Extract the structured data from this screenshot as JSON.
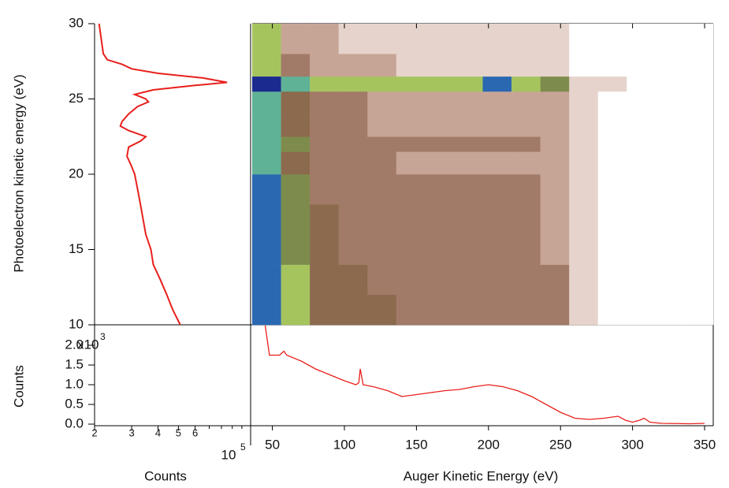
{
  "chart_data": [
    {
      "type": "line",
      "x_label": "Counts",
      "y_label": "Photoelectron kinetic energy (eV)",
      "log_x": true,
      "x_multiplier": "10",
      "x_multiplier_exp": "5",
      "xlim": [
        2,
        11
      ],
      "xticks": [
        2,
        3,
        4,
        5,
        6
      ],
      "xminor_ticks": [
        7,
        8,
        9,
        10
      ],
      "ylim": [
        10,
        30
      ],
      "yticks": [
        10,
        15,
        20,
        25,
        30
      ],
      "series": [
        {
          "color": "#e8201c",
          "y": [
            30,
            29,
            28,
            27.6,
            27.3,
            27,
            26.7,
            26.4,
            26.1,
            25.9,
            25.6,
            25.3,
            25,
            24.8,
            24.5,
            24,
            23.5,
            23.2,
            22.9,
            22.5,
            22.2,
            21.8,
            21.2,
            20.5,
            20,
            19,
            18,
            17,
            16,
            15,
            14,
            13,
            12,
            11,
            10
          ],
          "values": [
            2.1,
            2.15,
            2.2,
            2.3,
            2.7,
            3.0,
            4.0,
            6.5,
            8.5,
            6.0,
            3.8,
            3.1,
            3.5,
            3.6,
            3.2,
            2.9,
            2.7,
            2.65,
            2.9,
            3.5,
            3.3,
            2.9,
            2.85,
            3.0,
            3.1,
            3.2,
            3.3,
            3.4,
            3.5,
            3.7,
            3.8,
            4.1,
            4.4,
            4.7,
            5.1
          ]
        }
      ]
    },
    {
      "type": "heatmap",
      "x_label": "Auger Kinetic Energy (eV)",
      "xlim": [
        36,
        356
      ],
      "xticks": [
        50,
        100,
        150,
        200,
        250,
        300,
        350
      ],
      "ylim": [
        10,
        30
      ],
      "colorscale": [
        "#ffffff",
        "#e6d4cc",
        "#c7a596",
        "#a27a68",
        "#8c6a4e",
        "#7d8c4c",
        "#a6c45e",
        "#5fb296",
        "#2a68b2",
        "#1a2a8e"
      ],
      "x_bins": [
        36,
        56,
        76,
        96,
        116,
        136,
        156,
        176,
        196,
        216,
        236,
        256,
        276,
        296,
        316,
        336,
        356
      ],
      "y_bins": [
        10,
        12,
        14,
        16,
        18,
        20,
        21.5,
        22.5,
        24,
        25.5,
        26.5,
        28,
        30
      ],
      "z": [
        [
          8,
          6,
          4,
          4,
          4,
          3,
          3,
          3,
          3,
          3,
          3,
          1,
          0,
          0,
          0,
          0
        ],
        [
          8,
          6,
          4,
          4,
          3,
          3,
          3,
          3,
          3,
          3,
          3,
          1,
          0,
          0,
          0,
          0
        ],
        [
          8,
          5,
          4,
          3,
          3,
          3,
          3,
          3,
          3,
          3,
          2,
          1,
          0,
          0,
          0,
          0
        ],
        [
          8,
          5,
          4,
          3,
          3,
          3,
          3,
          3,
          3,
          3,
          2,
          1,
          0,
          0,
          0,
          0
        ],
        [
          8,
          5,
          3,
          3,
          3,
          3,
          3,
          3,
          3,
          3,
          2,
          1,
          0,
          0,
          0,
          0
        ],
        [
          7,
          4,
          3,
          3,
          3,
          2,
          2,
          2,
          2,
          2,
          2,
          1,
          0,
          0,
          0,
          0
        ],
        [
          7,
          5,
          3,
          3,
          3,
          3,
          3,
          3,
          3,
          3,
          2,
          1,
          0,
          0,
          0,
          0
        ],
        [
          7,
          4,
          3,
          3,
          2,
          2,
          2,
          2,
          2,
          2,
          2,
          1,
          0,
          0,
          0,
          0
        ],
        [
          7,
          4,
          3,
          3,
          2,
          2,
          2,
          2,
          2,
          2,
          2,
          1,
          0,
          0,
          0,
          0
        ],
        [
          9,
          7,
          6,
          6,
          6,
          6,
          6,
          6,
          8,
          6,
          5,
          1,
          1,
          0,
          0,
          0
        ],
        [
          6,
          3,
          2,
          2,
          2,
          1,
          1,
          1,
          1,
          1,
          1,
          0,
          0,
          0,
          0,
          0
        ],
        [
          6,
          2,
          2,
          1,
          1,
          1,
          1,
          1,
          1,
          1,
          1,
          0,
          0,
          0,
          0,
          0
        ]
      ]
    },
    {
      "type": "line",
      "y_label": "Counts",
      "y_multiplier": "x10",
      "y_multiplier_exp": "3",
      "xlim": [
        36,
        356
      ],
      "ylim": [
        0,
        2.52
      ],
      "yticks": [
        {
          "value": 0,
          "label": "0.0"
        },
        {
          "value": 0.5,
          "label": "0.5"
        },
        {
          "value": 1,
          "label": "1.0"
        },
        {
          "value": 1.5,
          "label": "1.5"
        },
        {
          "value": 2,
          "label": "2.0"
        }
      ],
      "series": [
        {
          "color": "#e8201c",
          "x": [
            45,
            48,
            55,
            58,
            60,
            70,
            80,
            90,
            100,
            108,
            110,
            111,
            113,
            120,
            130,
            140,
            150,
            160,
            170,
            180,
            190,
            200,
            210,
            220,
            230,
            240,
            250,
            260,
            270,
            280,
            290,
            295,
            300,
            305,
            308,
            312,
            320,
            340,
            350
          ],
          "values": [
            2.5,
            1.75,
            1.75,
            1.85,
            1.75,
            1.6,
            1.4,
            1.25,
            1.1,
            1.0,
            1.05,
            1.4,
            1.0,
            0.95,
            0.85,
            0.7,
            0.75,
            0.8,
            0.85,
            0.88,
            0.95,
            1.0,
            0.95,
            0.85,
            0.7,
            0.5,
            0.3,
            0.15,
            0.12,
            0.15,
            0.2,
            0.1,
            0.05,
            0.1,
            0.15,
            0.05,
            0.02,
            0.01,
            0.02
          ]
        }
      ]
    }
  ]
}
